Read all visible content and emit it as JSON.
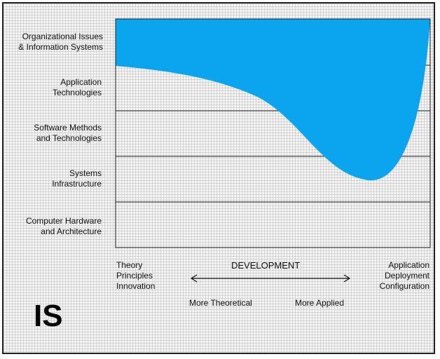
{
  "title": "IS",
  "rows": [
    {
      "line1": "Organizational Issues",
      "line2": "& Information Systems"
    },
    {
      "line1": "Application",
      "line2": "Technologies"
    },
    {
      "line1": "Software Methods",
      "line2": "and Technologies"
    },
    {
      "line1": "Systems",
      "line2": "Infrastructure"
    },
    {
      "line1": "Computer Hardware",
      "line2": "and Architecture"
    }
  ],
  "x_axis": {
    "left": [
      "Theory",
      "Principles",
      "Innovation"
    ],
    "center": "DEVELOPMENT",
    "right": [
      "Application",
      "Deployment",
      "Configuration"
    ],
    "more_theoretical": "More Theoretical",
    "more_applied": "More Applied"
  },
  "colors": {
    "region_fill": "#0aa4ef",
    "grid_line": "#222222"
  }
}
